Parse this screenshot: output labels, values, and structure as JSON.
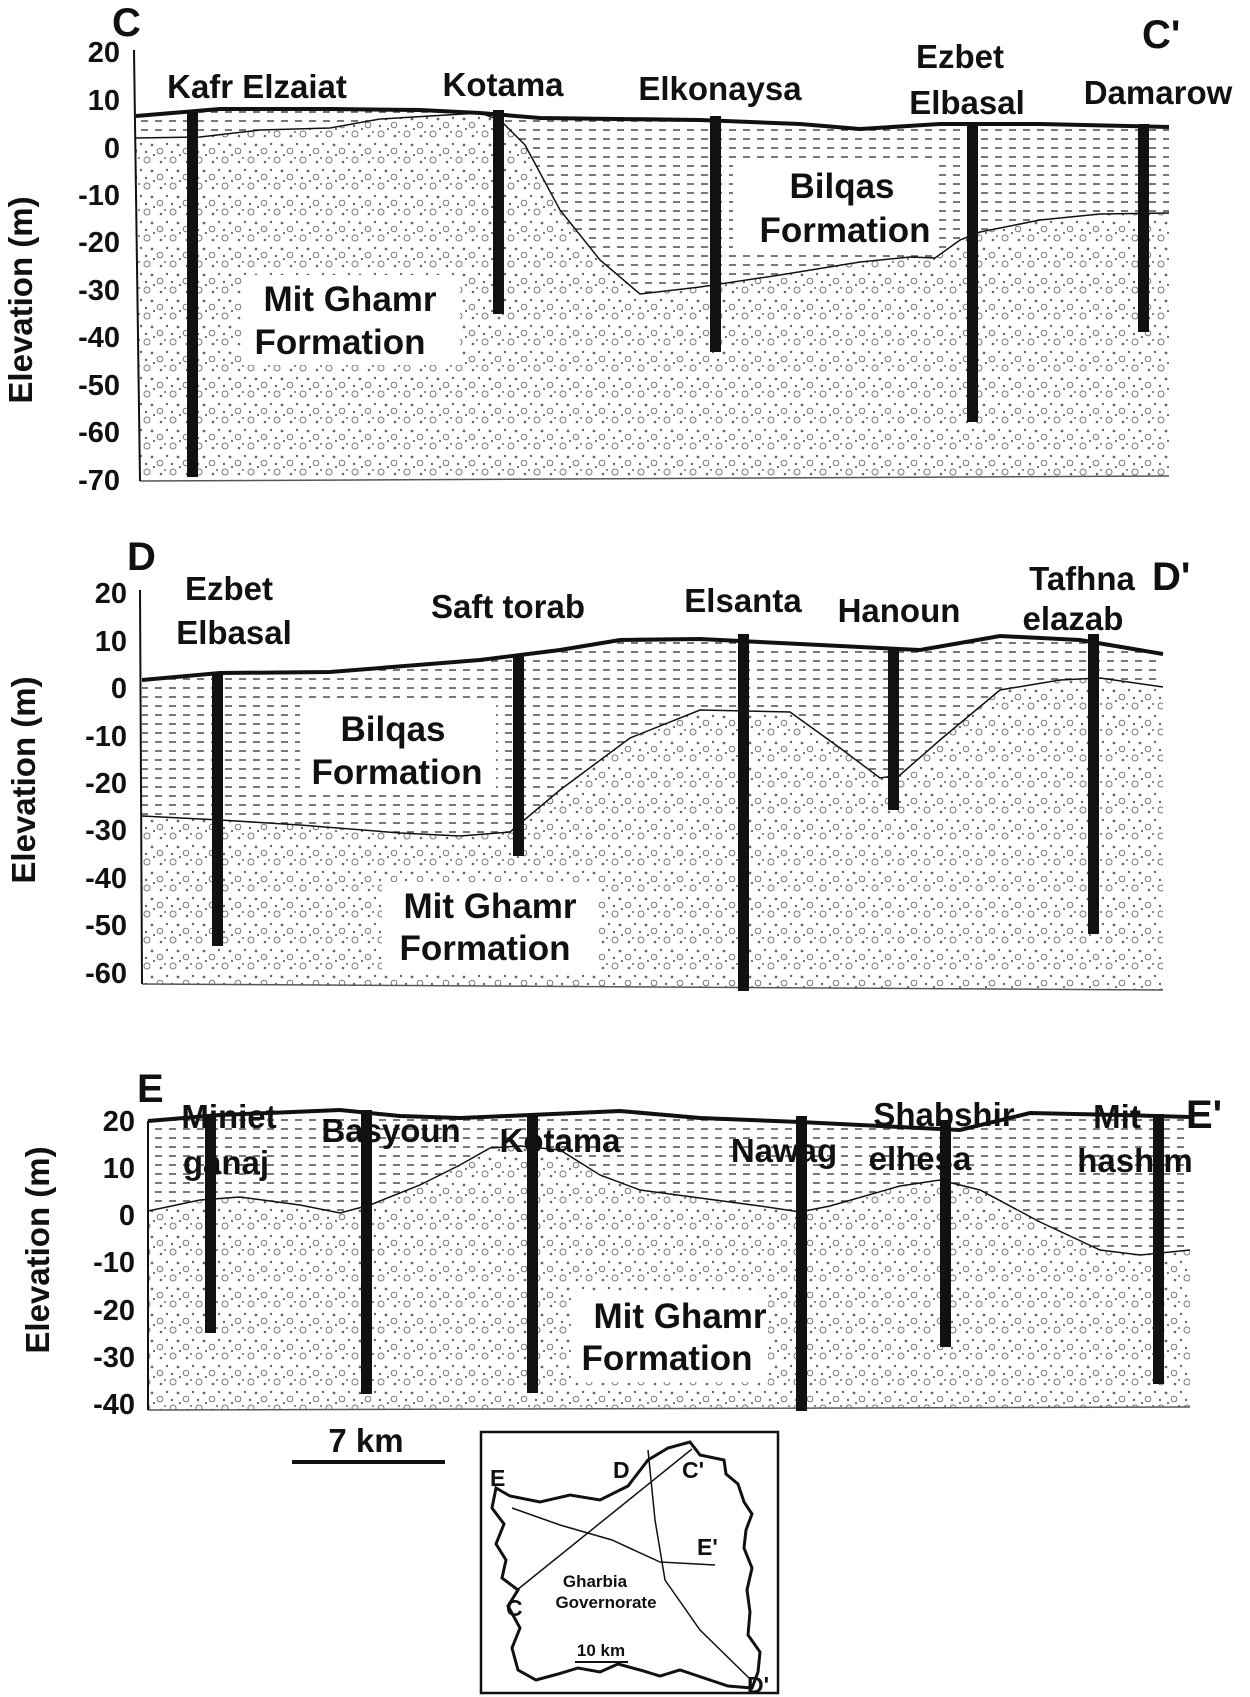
{
  "sections": [
    {
      "id": "C",
      "start_label": "C",
      "end_label": "C'",
      "y_label": "Elevation (m)",
      "y_ticks": [
        "20",
        "10",
        "0",
        "-10",
        "-20",
        "-30",
        "-40",
        "-50",
        "-60",
        "-70"
      ],
      "y_values": [
        20,
        10,
        0,
        -10,
        -20,
        -30,
        -40,
        -50,
        -60,
        -70
      ],
      "wells": [
        {
          "name_lines": [
            "Kafr Elzaiat"
          ],
          "depth": -69
        },
        {
          "name_lines": [
            "Kotama"
          ],
          "depth": -35
        },
        {
          "name_lines": [
            "Elkonaysa"
          ],
          "depth": -43
        },
        {
          "name_lines": [
            "Ezbet",
            "Elbasal"
          ],
          "depth": -57
        },
        {
          "name_lines": [
            "Damarow"
          ],
          "depth": -39
        }
      ],
      "formations": [
        {
          "name_lines": [
            "Bilqas",
            "Formation"
          ]
        },
        {
          "name_lines": [
            "Mit Ghamr",
            "Formation"
          ]
        }
      ]
    },
    {
      "id": "D",
      "start_label": "D",
      "end_label": "D'",
      "y_label": "Elevation (m)",
      "y_ticks": [
        "20",
        "10",
        "0",
        "-10",
        "-20",
        "-30",
        "-40",
        "-50",
        "-60"
      ],
      "y_values": [
        20,
        10,
        0,
        -10,
        -20,
        -30,
        -40,
        -50,
        -60
      ],
      "wells": [
        {
          "name_lines": [
            "Ezbet",
            "Elbasal"
          ],
          "depth": -53
        },
        {
          "name_lines": [
            "Saft torab"
          ],
          "depth": -35
        },
        {
          "name_lines": [
            "Elsanta"
          ],
          "depth": -61
        },
        {
          "name_lines": [
            "Hanoun"
          ],
          "depth": -25
        },
        {
          "name_lines": [
            "Tafhna",
            "elazab"
          ],
          "depth": -51
        }
      ],
      "formations": [
        {
          "name_lines": [
            "Bilqas",
            "Formation"
          ]
        },
        {
          "name_lines": [
            "Mit Ghamr",
            "Formation"
          ]
        }
      ]
    },
    {
      "id": "E",
      "start_label": "E",
      "end_label": "E'",
      "y_label": "Elevation (m)",
      "y_ticks": [
        "20",
        "10",
        "0",
        "-10",
        "-20",
        "-30",
        "-40"
      ],
      "y_values": [
        20,
        10,
        0,
        -10,
        -20,
        -30,
        -40
      ],
      "wells": [
        {
          "name_lines": [
            "Miniet",
            "ganaj"
          ],
          "depth": -24
        },
        {
          "name_lines": [
            "Basyoun"
          ],
          "depth": -38
        },
        {
          "name_lines": [
            "Kotama"
          ],
          "depth": -38
        },
        {
          "name_lines": [
            "Nawag"
          ],
          "depth": -41
        },
        {
          "name_lines": [
            "Shabshir",
            "elhesa"
          ],
          "depth": -28
        },
        {
          "name_lines": [
            "Mit",
            "hashim"
          ],
          "depth": -35
        }
      ],
      "formations": [
        {
          "name_lines": [
            "Mit Ghamr",
            "Formation"
          ]
        }
      ]
    }
  ],
  "scale_bar": {
    "label": "7 km"
  },
  "inset_map": {
    "region_lines": [
      "Gharbia",
      "Governorate"
    ],
    "scale_label": "10 km",
    "line_labels": {
      "E": "E",
      "D": "D",
      "C_prime": "C'",
      "E_prime": "E'",
      "C": "C",
      "D_prime": "D'"
    }
  },
  "colors": {
    "ink": "#111111",
    "paper": "#ffffff",
    "hatch": "#6a6a6a",
    "gravel": "#8a8a8a"
  }
}
